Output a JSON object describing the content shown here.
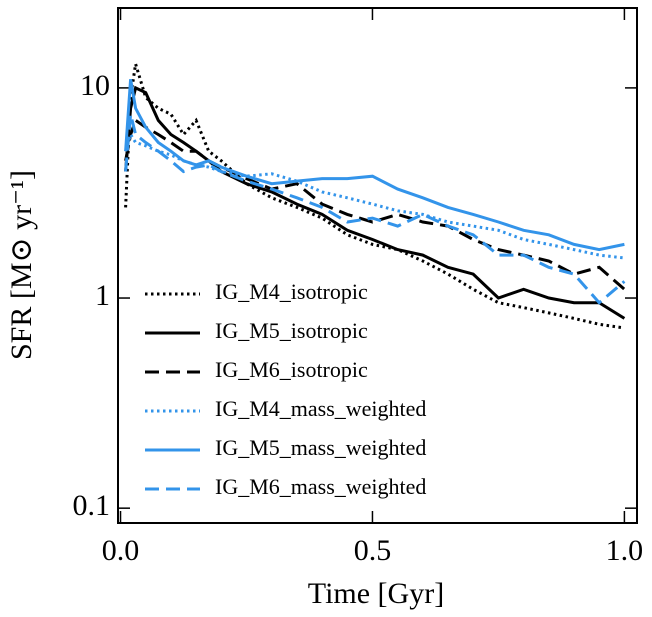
{
  "chart_data": {
    "type": "line",
    "x_label": "Time [Gyr]",
    "y_label": "SFR [M⊙ yr⁻¹]",
    "log_y": true,
    "legend": "center left",
    "xlim": [
      -0.005,
      1.025
    ],
    "ylim": [
      0.085,
      24
    ],
    "xticks": [
      {
        "value": 0,
        "label": "0.0"
      },
      0.5,
      {
        "value": 1,
        "label": "1.0"
      }
    ],
    "yticks": [
      0.1,
      1,
      10
    ],
    "x": [
      0.01,
      0.02,
      0.03,
      0.05,
      0.075,
      0.1,
      0.125,
      0.15,
      0.175,
      0.2,
      0.25,
      0.3,
      0.35,
      0.4,
      0.45,
      0.5,
      0.55,
      0.6,
      0.65,
      0.7,
      0.75,
      0.8,
      0.85,
      0.9,
      0.95,
      1.0
    ],
    "series": [
      {
        "name": "IG_M4_isotropic",
        "color": "#000000",
        "linestyle": "dotted",
        "values": [
          2.7,
          9,
          13,
          9,
          8,
          7.5,
          6,
          7,
          5,
          4.5,
          3.5,
          3,
          2.7,
          2.4,
          2,
          1.8,
          1.7,
          1.5,
          1.3,
          1.1,
          0.95,
          0.9,
          0.85,
          0.8,
          0.75,
          0.72
        ]
      },
      {
        "name": "IG_M5_isotropic",
        "color": "#000000",
        "linestyle": "solid",
        "values": [
          4,
          8,
          10,
          9.5,
          7,
          6,
          5.5,
          5,
          4.5,
          4,
          3.5,
          3.2,
          2.8,
          2.5,
          2.1,
          1.9,
          1.7,
          1.6,
          1.4,
          1.3,
          1,
          1.1,
          1,
          0.95,
          0.95,
          0.8
        ]
      },
      {
        "name": "IG_M6_isotropic",
        "color": "#000000",
        "linestyle": "dashed",
        "values": [
          4.5,
          6,
          7,
          6.5,
          6,
          5.5,
          5,
          5,
          4.5,
          4.2,
          3.7,
          3.3,
          3.5,
          2.8,
          2.5,
          2.3,
          2.5,
          2.3,
          2.2,
          1.9,
          1.7,
          1.6,
          1.5,
          1.3,
          1.4,
          1.1
        ]
      },
      {
        "name": "IG_M4_mass_weighted",
        "color": "#3394ea",
        "linestyle": "dotted",
        "values": [
          5,
          6,
          5.5,
          5.3,
          5,
          4.8,
          4.5,
          4.3,
          4.2,
          4,
          3.8,
          3.9,
          3.6,
          3.2,
          3,
          2.8,
          2.6,
          2.5,
          2.3,
          2.2,
          2.1,
          1.9,
          1.8,
          1.7,
          1.6,
          1.55
        ]
      },
      {
        "name": "IG_M5_mass_weighted",
        "color": "#3394ea",
        "linestyle": "solid",
        "values": [
          5,
          11,
          8,
          6.5,
          5.5,
          5,
          4.5,
          4.3,
          4.5,
          4.2,
          3.8,
          3.5,
          3.6,
          3.7,
          3.7,
          3.8,
          3.3,
          3,
          2.7,
          2.5,
          2.3,
          2.1,
          2,
          1.8,
          1.7,
          1.8
        ]
      },
      {
        "name": "IG_M6_mass_weighted",
        "color": "#3394ea",
        "linestyle": "dashed",
        "values": [
          4,
          7.5,
          6,
          5.5,
          5,
          4.5,
          4,
          4.2,
          4.3,
          4,
          3.6,
          3.3,
          3,
          2.7,
          2.3,
          2.4,
          2.2,
          2.5,
          2.2,
          2,
          1.6,
          1.6,
          1.4,
          1.3,
          0.95,
          1.2
        ]
      }
    ]
  }
}
